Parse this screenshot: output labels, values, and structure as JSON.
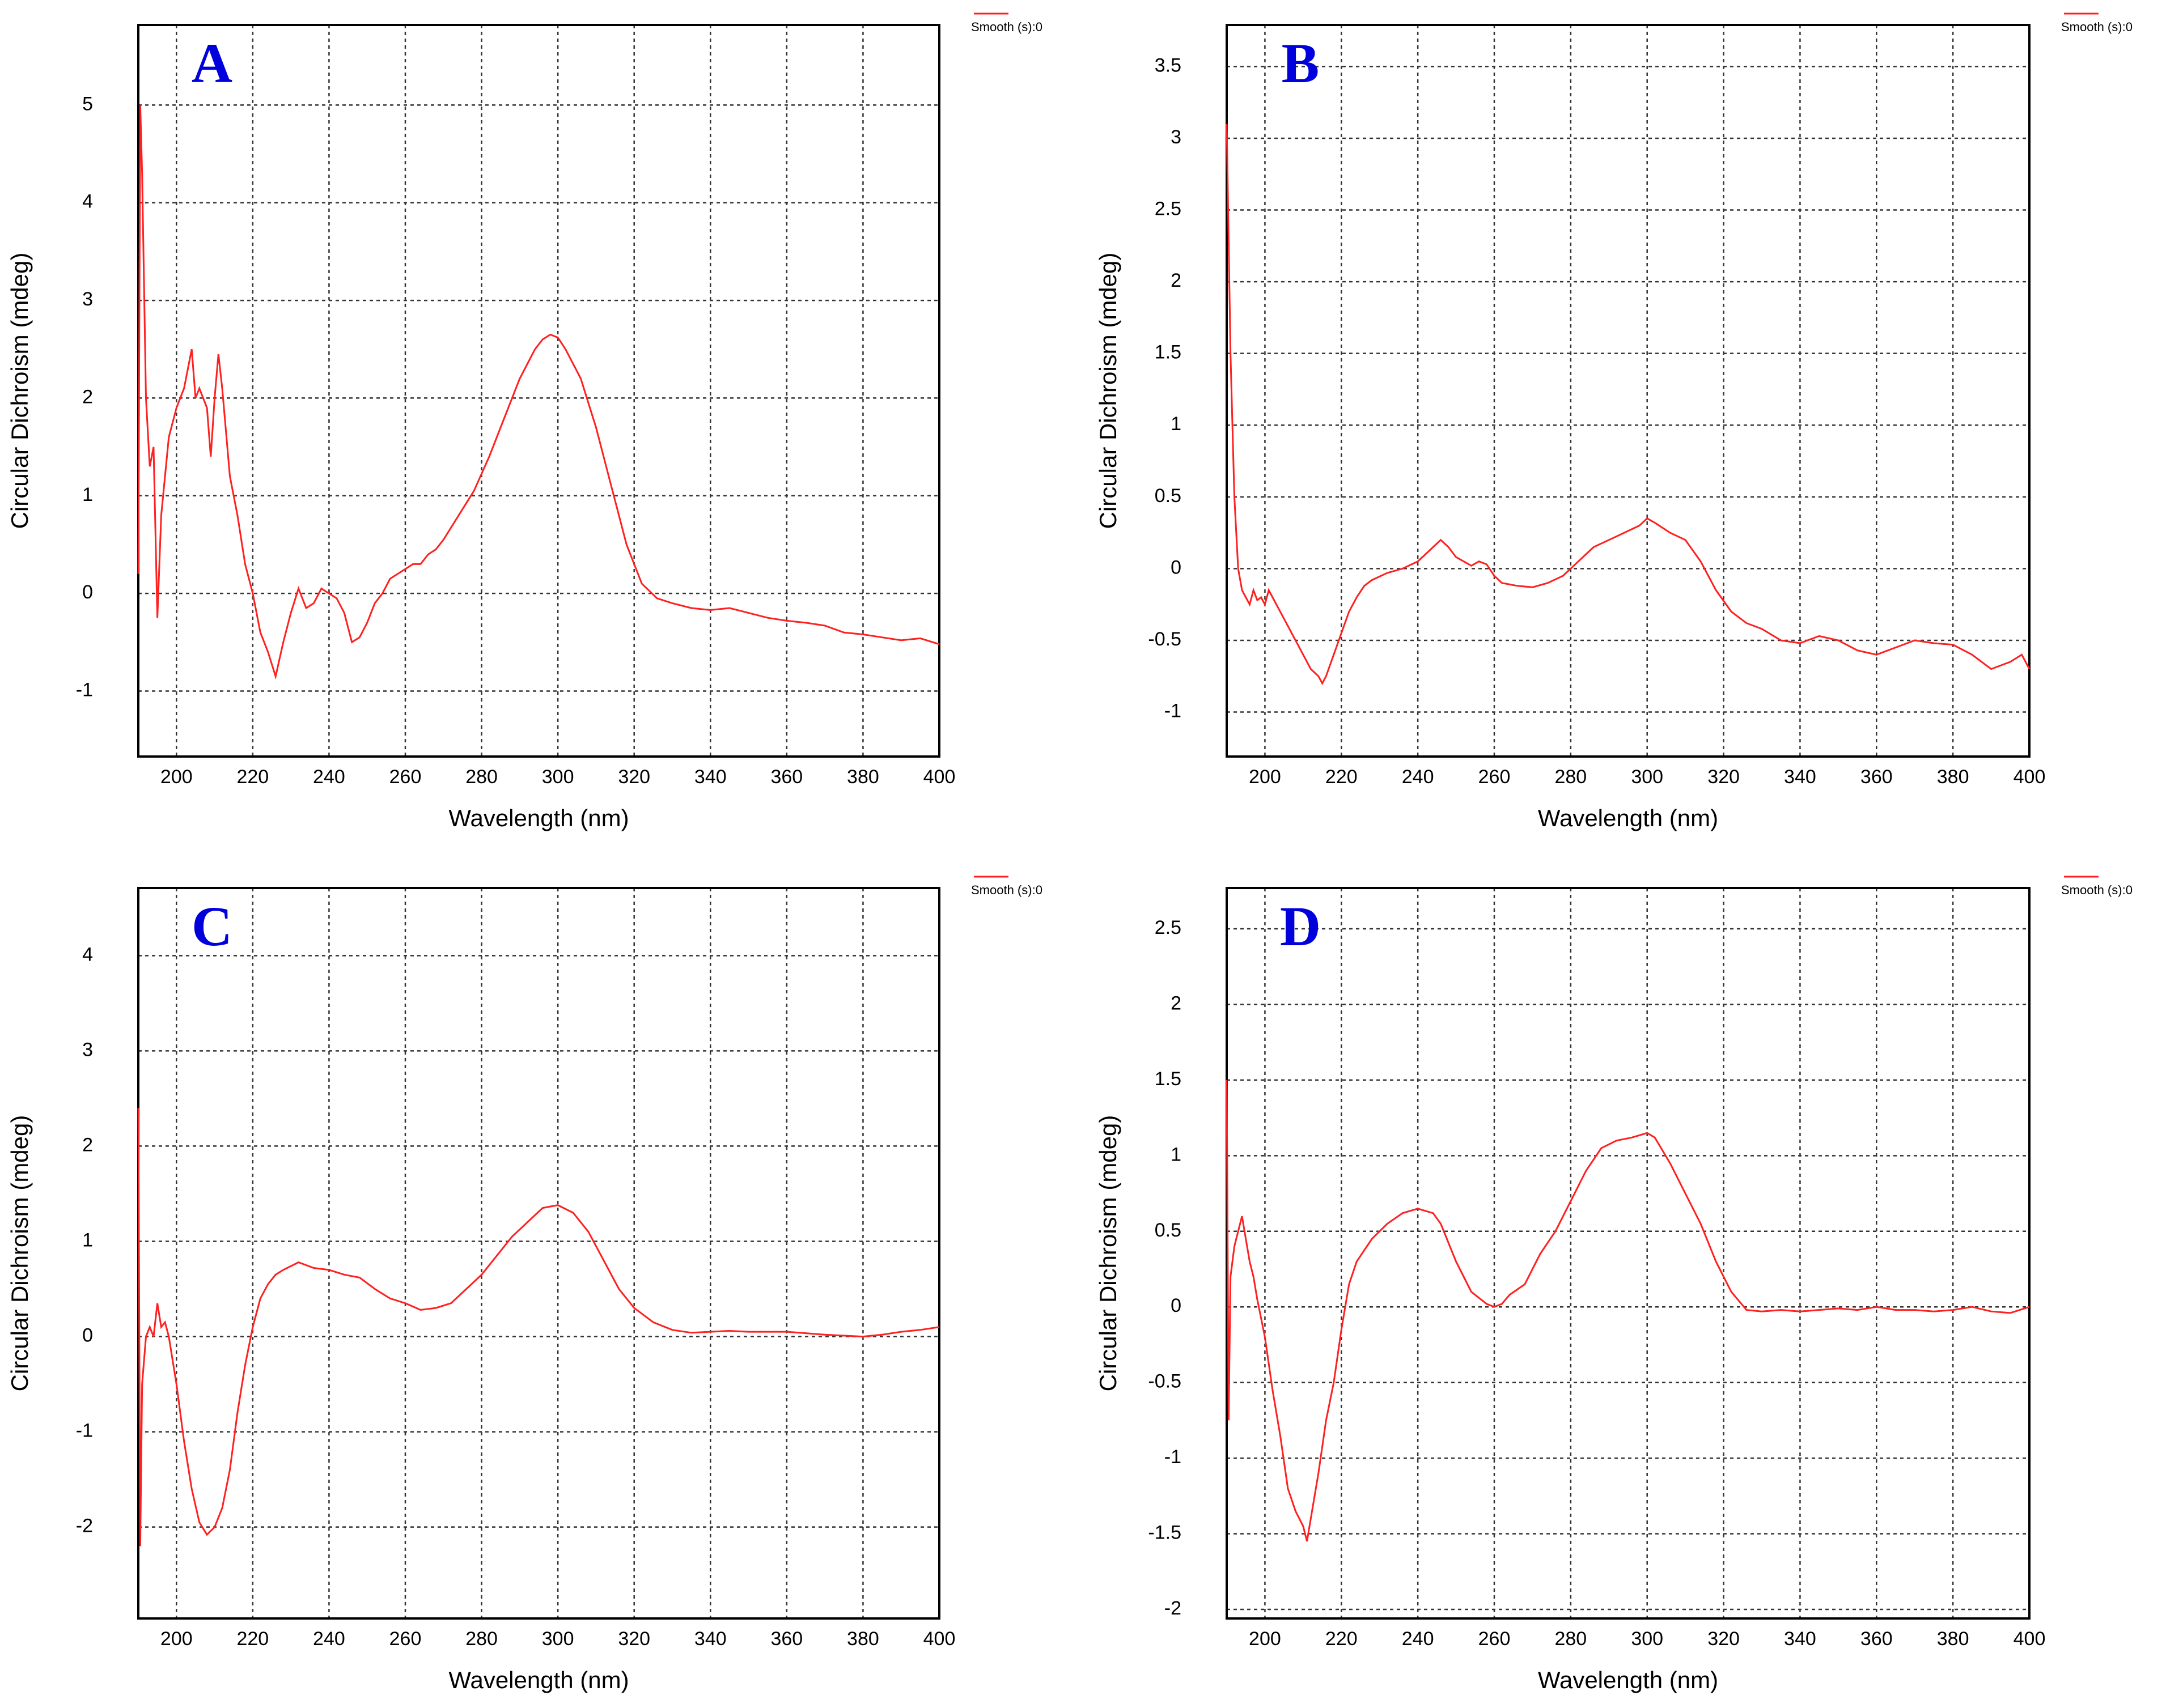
{
  "chart_data": [
    {
      "type": "line",
      "annotation": "A",
      "x_label": "Wavelength (nm)",
      "y_label": "Circular Dichroism (mdeg)",
      "legend": "upper right",
      "grid": true,
      "xlim": [
        190,
        400
      ],
      "ylim": [
        -1.67,
        5.82
      ],
      "xticks": [
        200,
        220,
        240,
        260,
        280,
        300,
        320,
        340,
        360,
        380,
        400
      ],
      "yticks": [
        -1,
        0,
        1,
        2,
        3,
        4,
        5
      ],
      "x": [
        190,
        190.5,
        191,
        192,
        193,
        194,
        195,
        196,
        197,
        198,
        200,
        202,
        204,
        205,
        206,
        208,
        209,
        210,
        211,
        212,
        214,
        216,
        218,
        220,
        222,
        224,
        226,
        228,
        230,
        232,
        234,
        236,
        238,
        240,
        242,
        244,
        246,
        248,
        250,
        252,
        254,
        256,
        258,
        260,
        262,
        264,
        266,
        268,
        270,
        274,
        278,
        282,
        286,
        290,
        294,
        296,
        298,
        300,
        302,
        306,
        310,
        314,
        318,
        322,
        326,
        330,
        335,
        340,
        345,
        350,
        355,
        360,
        365,
        370,
        375,
        380,
        385,
        390,
        395,
        400
      ],
      "series": [
        {
          "name": "Smooth (s):0",
          "color": "#ff2020",
          "values": [
            0.2,
            5.0,
            4.3,
            2.0,
            1.3,
            1.5,
            -0.25,
            0.8,
            1.2,
            1.6,
            1.9,
            2.1,
            2.5,
            2.0,
            2.1,
            1.9,
            1.4,
            2.0,
            2.45,
            2.1,
            1.2,
            0.8,
            0.3,
            0.0,
            -0.4,
            -0.6,
            -0.85,
            -0.5,
            -0.2,
            0.05,
            -0.15,
            -0.1,
            0.05,
            0.0,
            -0.05,
            -0.2,
            -0.5,
            -0.45,
            -0.3,
            -0.1,
            0.0,
            0.15,
            0.2,
            0.25,
            0.3,
            0.3,
            0.4,
            0.45,
            0.55,
            0.8,
            1.05,
            1.4,
            1.8,
            2.2,
            2.5,
            2.6,
            2.65,
            2.62,
            2.5,
            2.2,
            1.7,
            1.1,
            0.5,
            0.1,
            -0.05,
            -0.1,
            -0.15,
            -0.17,
            -0.15,
            -0.2,
            -0.25,
            -0.28,
            -0.3,
            -0.33,
            -0.4,
            -0.42,
            -0.45,
            -0.48,
            -0.46,
            -0.52
          ]
        }
      ]
    },
    {
      "type": "line",
      "annotation": "B",
      "x_label": "Wavelength (nm)",
      "y_label": "Circular Dichroism (mdeg)",
      "legend": "upper right",
      "grid": true,
      "xlim": [
        190,
        400
      ],
      "ylim": [
        -1.31,
        3.79
      ],
      "xticks": [
        200,
        220,
        240,
        260,
        280,
        300,
        320,
        340,
        360,
        380,
        400
      ],
      "yticks": [
        -1,
        -0.5,
        0,
        0.5,
        1,
        1.5,
        2,
        2.5,
        3,
        3.5
      ],
      "x": [
        190,
        191,
        192,
        193,
        194,
        195,
        196,
        197,
        198,
        199,
        200,
        201,
        202,
        204,
        206,
        208,
        210,
        212,
        214,
        215,
        216,
        218,
        220,
        222,
        224,
        226,
        228,
        232,
        236,
        240,
        242,
        244,
        246,
        248,
        250,
        252,
        254,
        256,
        258,
        260,
        262,
        266,
        270,
        274,
        278,
        282,
        286,
        290,
        294,
        298,
        300,
        302,
        306,
        310,
        314,
        318,
        322,
        326,
        330,
        335,
        340,
        345,
        350,
        355,
        360,
        365,
        370,
        375,
        380,
        385,
        390,
        395,
        398,
        400
      ],
      "series": [
        {
          "name": "Smooth (s):0",
          "color": "#ff2020",
          "values": [
            3.1,
            1.5,
            0.5,
            0.0,
            -0.15,
            -0.2,
            -0.25,
            -0.15,
            -0.22,
            -0.2,
            -0.25,
            -0.15,
            -0.2,
            -0.3,
            -0.4,
            -0.5,
            -0.6,
            -0.7,
            -0.75,
            -0.8,
            -0.75,
            -0.6,
            -0.45,
            -0.3,
            -0.2,
            -0.12,
            -0.08,
            -0.03,
            0.0,
            0.05,
            0.1,
            0.15,
            0.2,
            0.15,
            0.08,
            0.05,
            0.02,
            0.05,
            0.03,
            -0.05,
            -0.1,
            -0.12,
            -0.13,
            -0.1,
            -0.05,
            0.05,
            0.15,
            0.2,
            0.25,
            0.3,
            0.35,
            0.32,
            0.25,
            0.2,
            0.05,
            -0.15,
            -0.3,
            -0.38,
            -0.42,
            -0.5,
            -0.52,
            -0.47,
            -0.5,
            -0.57,
            -0.6,
            -0.55,
            -0.5,
            -0.52,
            -0.53,
            -0.6,
            -0.7,
            -0.65,
            -0.6,
            -0.7
          ]
        }
      ]
    },
    {
      "type": "line",
      "annotation": "C",
      "x_label": "Wavelength (nm)",
      "y_label": "Circular Dichroism (mdeg)",
      "legend": "upper right",
      "grid": true,
      "xlim": [
        190,
        400
      ],
      "ylim": [
        -2.96,
        4.71
      ],
      "xticks": [
        200,
        220,
        240,
        260,
        280,
        300,
        320,
        340,
        360,
        380,
        400
      ],
      "yticks": [
        -2,
        -1,
        0,
        1,
        2,
        3,
        4
      ],
      "x": [
        190,
        190.5,
        191,
        192,
        193,
        194,
        195,
        196,
        197,
        198,
        200,
        202,
        204,
        206,
        208,
        210,
        212,
        214,
        216,
        218,
        220,
        222,
        224,
        226,
        228,
        232,
        236,
        240,
        244,
        248,
        252,
        256,
        260,
        264,
        268,
        272,
        276,
        280,
        284,
        288,
        292,
        296,
        300,
        304,
        308,
        312,
        316,
        320,
        325,
        330,
        335,
        340,
        345,
        350,
        355,
        360,
        370,
        380,
        385,
        390,
        395,
        400
      ],
      "series": [
        {
          "name": "Smooth (s):0",
          "color": "#ff2020",
          "values": [
            2.4,
            -2.2,
            -0.5,
            0.0,
            0.1,
            0.0,
            0.35,
            0.1,
            0.15,
            0.0,
            -0.5,
            -1.1,
            -1.6,
            -1.95,
            -2.08,
            -2.0,
            -1.8,
            -1.4,
            -0.8,
            -0.3,
            0.1,
            0.4,
            0.55,
            0.65,
            0.7,
            0.78,
            0.72,
            0.7,
            0.65,
            0.62,
            0.5,
            0.4,
            0.35,
            0.28,
            0.3,
            0.35,
            0.5,
            0.65,
            0.85,
            1.05,
            1.2,
            1.35,
            1.38,
            1.3,
            1.1,
            0.8,
            0.5,
            0.3,
            0.15,
            0.07,
            0.04,
            0.05,
            0.06,
            0.05,
            0.05,
            0.05,
            0.02,
            0.0,
            0.02,
            0.05,
            0.07,
            0.1
          ]
        }
      ]
    },
    {
      "type": "line",
      "annotation": "D",
      "x_label": "Wavelength (nm)",
      "y_label": "Circular Dichroism (mdeg)",
      "legend": "upper right",
      "grid": true,
      "xlim": [
        190,
        400
      ],
      "ylim": [
        -2.06,
        2.77
      ],
      "xticks": [
        200,
        220,
        240,
        260,
        280,
        300,
        320,
        340,
        360,
        380,
        400
      ],
      "yticks": [
        -2,
        -1.5,
        -1,
        -0.5,
        0,
        0.5,
        1,
        1.5,
        2,
        2.5
      ],
      "x": [
        190,
        190.5,
        191,
        192,
        193,
        194,
        195,
        196,
        197,
        198,
        200,
        202,
        204,
        206,
        208,
        210,
        211,
        212,
        214,
        216,
        218,
        220,
        222,
        224,
        228,
        232,
        236,
        240,
        244,
        246,
        250,
        254,
        258,
        260,
        262,
        264,
        268,
        272,
        276,
        280,
        284,
        288,
        292,
        296,
        300,
        302,
        306,
        310,
        314,
        318,
        322,
        326,
        330,
        335,
        340,
        345,
        350,
        355,
        360,
        365,
        370,
        375,
        380,
        385,
        390,
        395,
        400
      ],
      "series": [
        {
          "name": "Smooth (s):0",
          "color": "#ff2020",
          "values": [
            1.5,
            -0.75,
            0.2,
            0.4,
            0.5,
            0.6,
            0.45,
            0.3,
            0.2,
            0.05,
            -0.2,
            -0.55,
            -0.85,
            -1.2,
            -1.35,
            -1.45,
            -1.55,
            -1.4,
            -1.1,
            -0.75,
            -0.5,
            -0.15,
            0.15,
            0.3,
            0.45,
            0.55,
            0.62,
            0.65,
            0.62,
            0.55,
            0.3,
            0.1,
            0.02,
            0.0,
            0.02,
            0.08,
            0.15,
            0.35,
            0.5,
            0.7,
            0.9,
            1.05,
            1.1,
            1.12,
            1.15,
            1.12,
            0.95,
            0.75,
            0.55,
            0.3,
            0.1,
            -0.02,
            -0.03,
            -0.02,
            -0.03,
            -0.02,
            -0.01,
            -0.02,
            0.0,
            -0.02,
            -0.02,
            -0.03,
            -0.02,
            0.0,
            -0.03,
            -0.04,
            0.0
          ]
        }
      ]
    }
  ]
}
